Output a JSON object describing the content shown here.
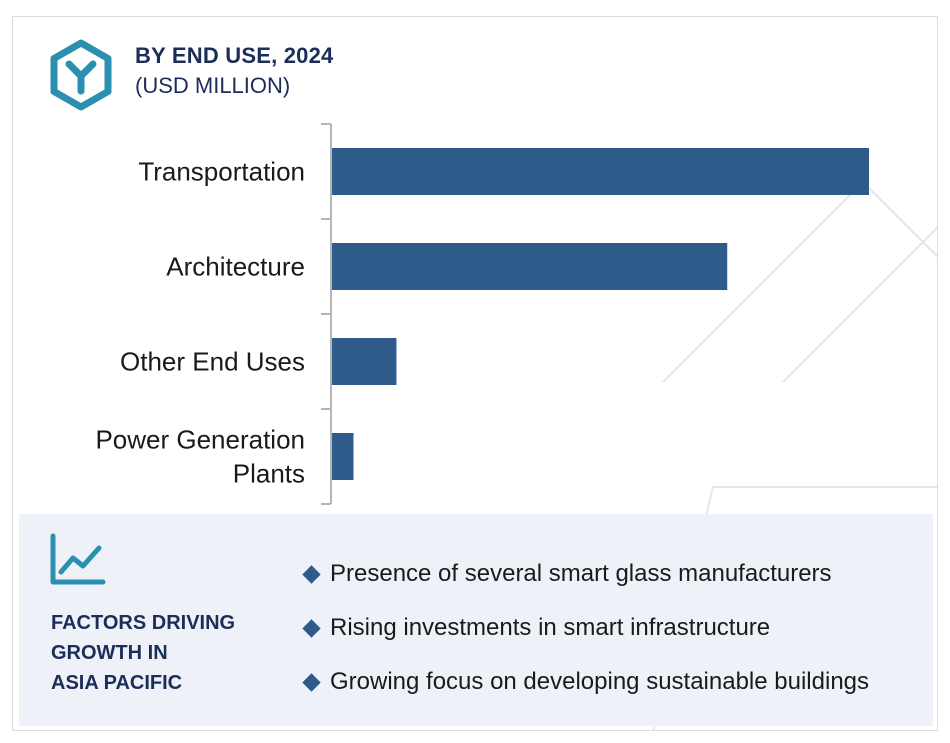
{
  "header": {
    "title": "BY END USE, 2024",
    "subtitle": "(USD MILLION)"
  },
  "colors": {
    "bar": "#2e5b8a",
    "title": "#1b2e5a",
    "icon": "#2b8fb0",
    "panel_bg": "#eef2f8"
  },
  "icons": {
    "logo": "hexagon-y-logo-icon",
    "trend": "trend-line-chart-icon",
    "bullet": "diamond-bullet-icon"
  },
  "chart_data": {
    "type": "bar",
    "orientation": "horizontal",
    "categories": [
      "Transportation",
      "Architecture",
      "Other End Uses",
      "Power Generation Plants"
    ],
    "category_lines": [
      [
        "Transportation"
      ],
      [
        "Architecture"
      ],
      [
        "Other End Uses"
      ],
      [
        "Power Generation",
        "Plants"
      ]
    ],
    "values": [
      100,
      73.6,
      12,
      4
    ],
    "title": "BY END USE, 2024",
    "subtitle": "(USD MILLION)",
    "xlabel": "",
    "ylabel": "",
    "xlim": [
      0,
      100
    ],
    "grid": false,
    "legend": "none",
    "value_labels": false
  },
  "factors": {
    "title_lines": [
      "FACTORS DRIVING",
      "GROWTH IN",
      "ASIA PACIFIC"
    ],
    "items": [
      "Presence of several smart glass manufacturers",
      "Rising investments in smart infrastructure",
      "Growing focus on developing sustainable buildings"
    ]
  }
}
